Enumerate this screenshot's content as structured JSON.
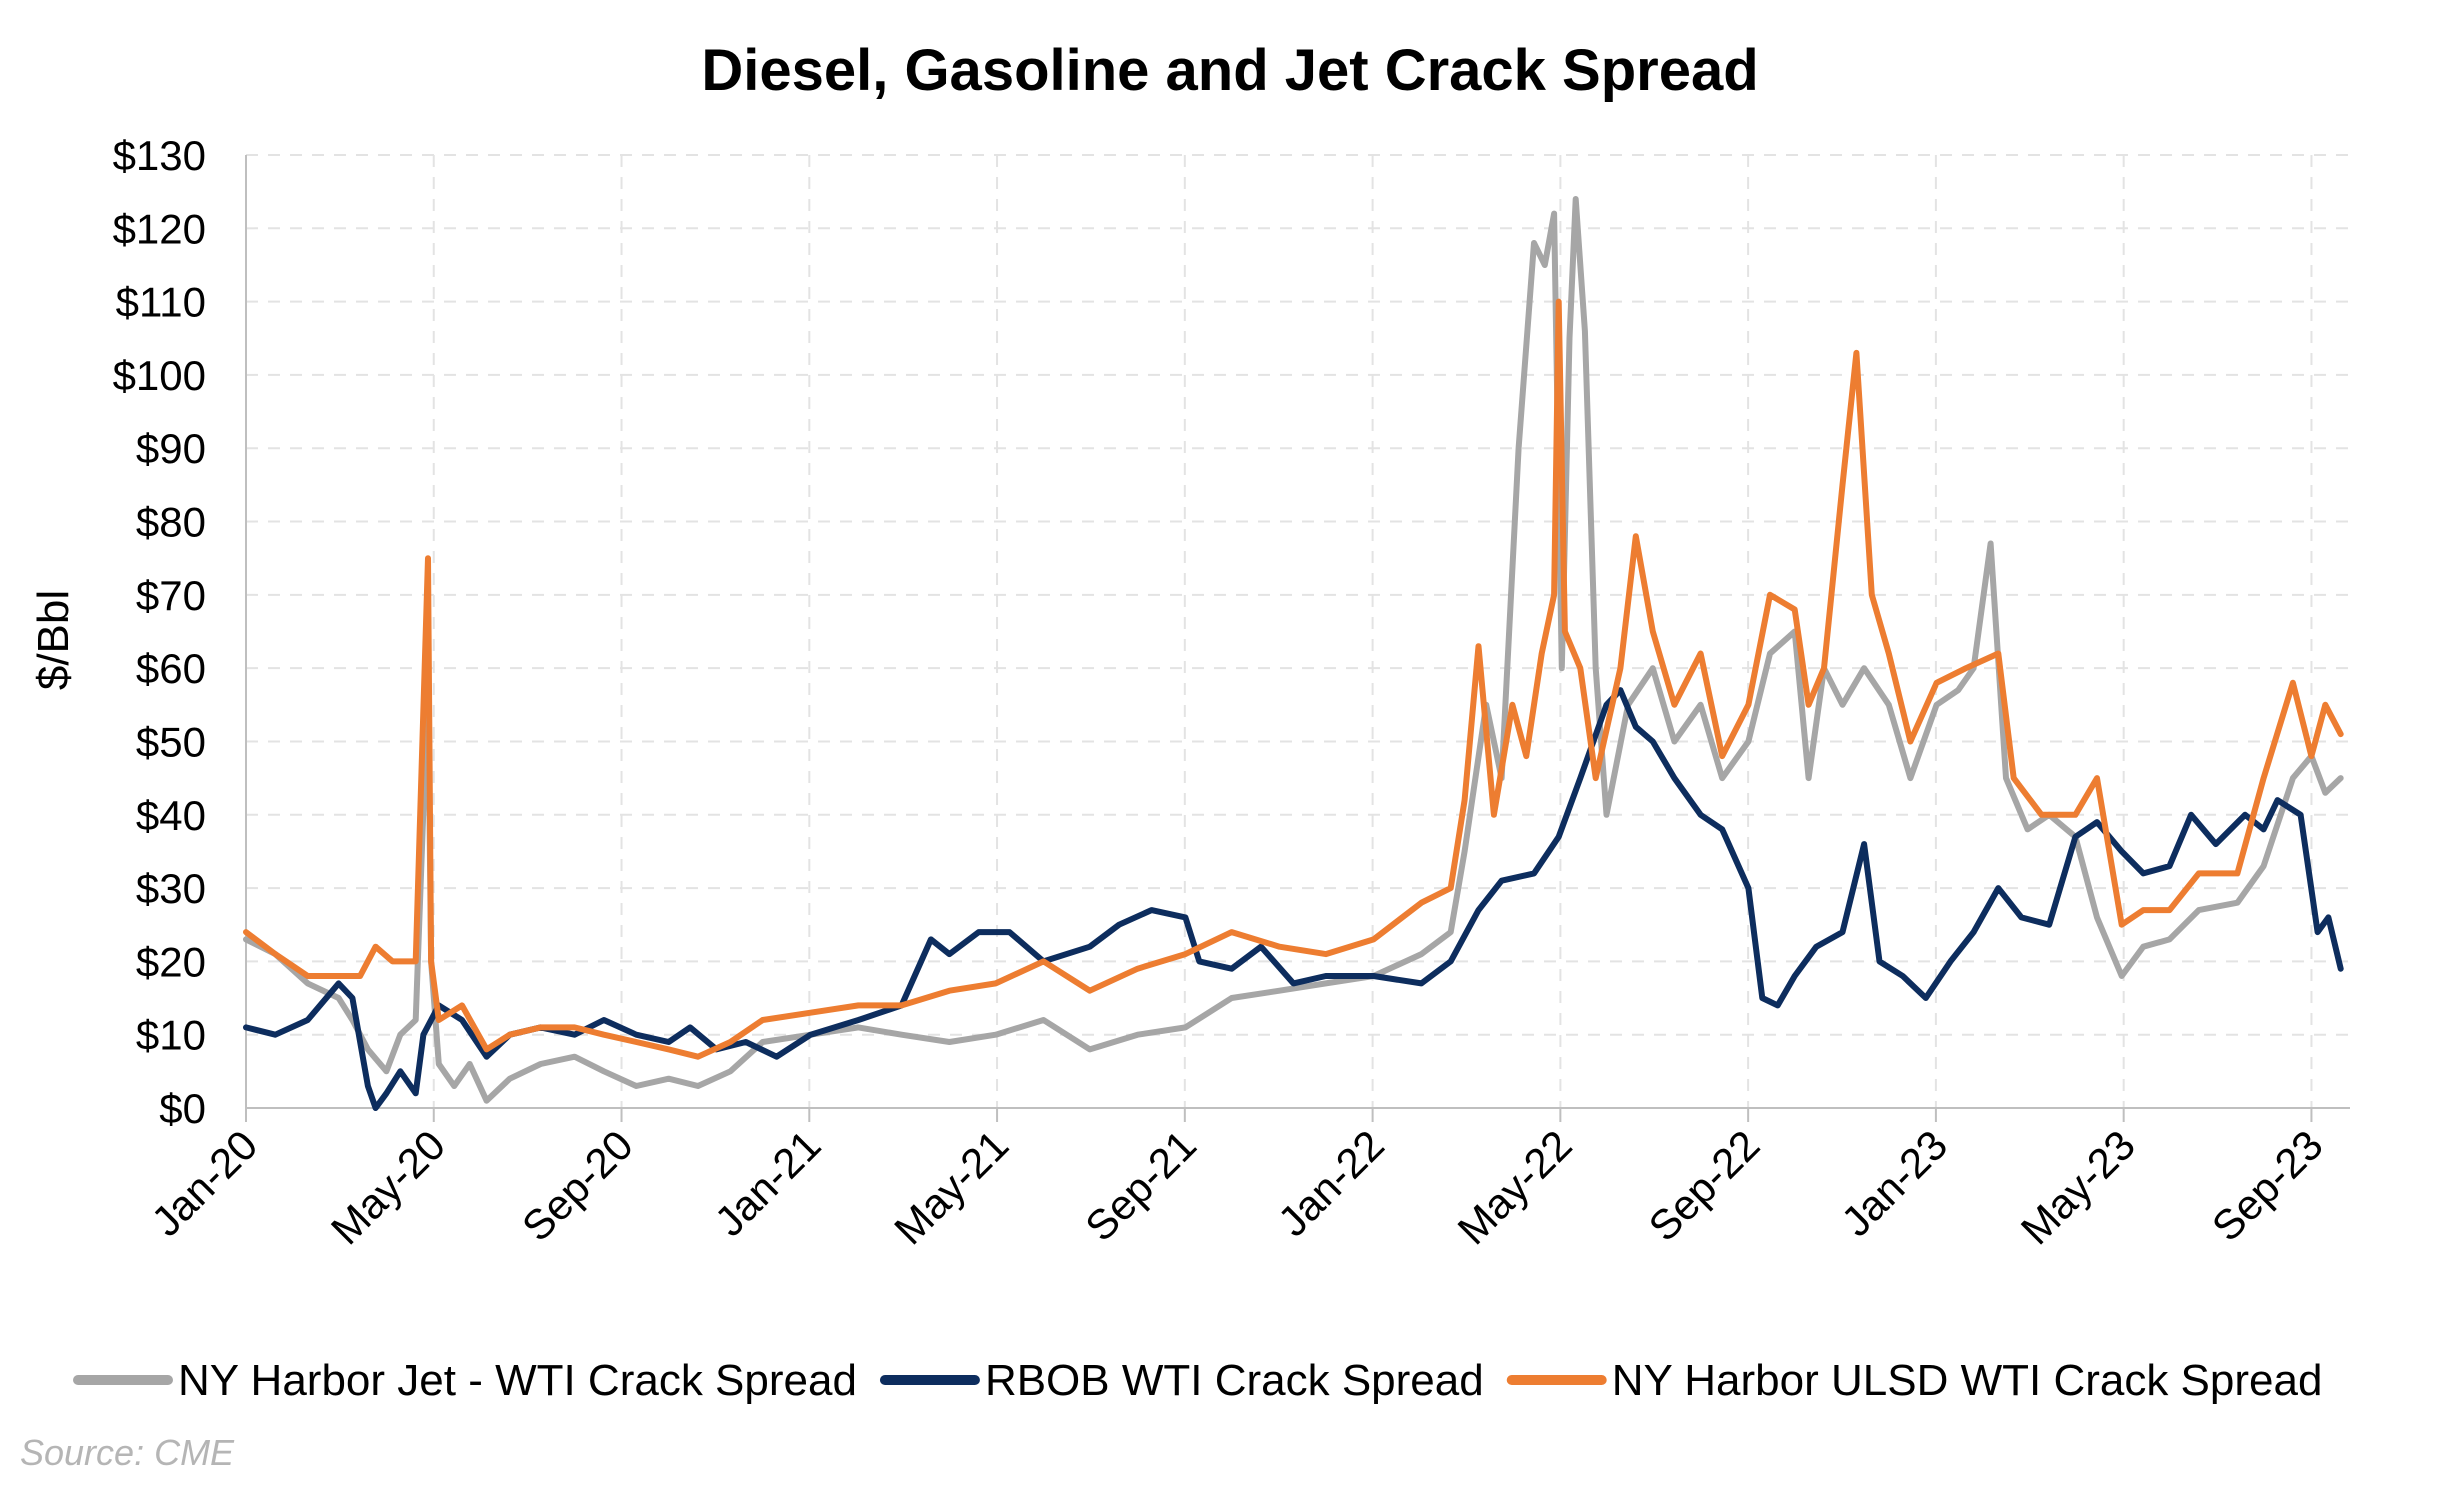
{
  "chart_data": {
    "type": "line",
    "title": "Diesel, Gasoline and Jet Crack Spread",
    "xlabel": "",
    "ylabel": "$/Bbl",
    "ylim": [
      0,
      130
    ],
    "yticks": [
      "$0",
      "$10",
      "$20",
      "$30",
      "$40",
      "$50",
      "$60",
      "$70",
      "$80",
      "$90",
      "$100",
      "$110",
      "$120",
      "$130"
    ],
    "xticks": [
      "Jan-20",
      "May-20",
      "Sep-20",
      "Jan-21",
      "May-21",
      "Sep-21",
      "Jan-22",
      "May-22",
      "Sep-22",
      "Jan-23",
      "May-23",
      "Sep-23"
    ],
    "grid": true,
    "legend_position": "bottom",
    "source": "Source: CME",
    "series": [
      {
        "name": "NY Harbor Jet - WTI Crack Spread",
        "color": "#a6a6a6",
        "points": [
          [
            "2020-01-01",
            23
          ],
          [
            "2020-01-20",
            21
          ],
          [
            "2020-02-10",
            17
          ],
          [
            "2020-03-01",
            15
          ],
          [
            "2020-03-10",
            12
          ],
          [
            "2020-03-20",
            8
          ],
          [
            "2020-04-01",
            5
          ],
          [
            "2020-04-10",
            10
          ],
          [
            "2020-04-20",
            12
          ],
          [
            "2020-04-28",
            58
          ],
          [
            "2020-04-30",
            20
          ],
          [
            "2020-05-05",
            6
          ],
          [
            "2020-05-15",
            3
          ],
          [
            "2020-05-25",
            6
          ],
          [
            "2020-06-05",
            1
          ],
          [
            "2020-06-20",
            4
          ],
          [
            "2020-07-10",
            6
          ],
          [
            "2020-08-01",
            7
          ],
          [
            "2020-08-20",
            5
          ],
          [
            "2020-09-10",
            3
          ],
          [
            "2020-10-01",
            4
          ],
          [
            "2020-10-20",
            3
          ],
          [
            "2020-11-10",
            5
          ],
          [
            "2020-12-01",
            9
          ],
          [
            "2021-01-01",
            10
          ],
          [
            "2021-02-01",
            11
          ],
          [
            "2021-03-01",
            10
          ],
          [
            "2021-04-01",
            9
          ],
          [
            "2021-05-01",
            10
          ],
          [
            "2021-06-01",
            12
          ],
          [
            "2021-07-01",
            8
          ],
          [
            "2021-08-01",
            10
          ],
          [
            "2021-09-01",
            11
          ],
          [
            "2021-10-01",
            15
          ],
          [
            "2021-11-01",
            16
          ],
          [
            "2021-12-01",
            17
          ],
          [
            "2022-01-01",
            18
          ],
          [
            "2022-02-01",
            21
          ],
          [
            "2022-02-20",
            24
          ],
          [
            "2022-03-01",
            35
          ],
          [
            "2022-03-15",
            55
          ],
          [
            "2022-03-25",
            45
          ],
          [
            "2022-04-05",
            90
          ],
          [
            "2022-04-15",
            118
          ],
          [
            "2022-04-22",
            115
          ],
          [
            "2022-04-28",
            122
          ],
          [
            "2022-05-03",
            60
          ],
          [
            "2022-05-08",
            105
          ],
          [
            "2022-05-12",
            124
          ],
          [
            "2022-05-18",
            106
          ],
          [
            "2022-05-25",
            60
          ],
          [
            "2022-06-01",
            40
          ],
          [
            "2022-06-15",
            55
          ],
          [
            "2022-07-01",
            60
          ],
          [
            "2022-07-15",
            50
          ],
          [
            "2022-08-01",
            55
          ],
          [
            "2022-08-15",
            45
          ],
          [
            "2022-09-01",
            50
          ],
          [
            "2022-09-15",
            62
          ],
          [
            "2022-10-01",
            65
          ],
          [
            "2022-10-10",
            45
          ],
          [
            "2022-10-20",
            60
          ],
          [
            "2022-11-01",
            55
          ],
          [
            "2022-11-15",
            60
          ],
          [
            "2022-12-01",
            55
          ],
          [
            "2022-12-15",
            45
          ],
          [
            "2023-01-01",
            55
          ],
          [
            "2023-01-15",
            57
          ],
          [
            "2023-01-25",
            60
          ],
          [
            "2023-02-05",
            77
          ],
          [
            "2023-02-15",
            45
          ],
          [
            "2023-03-01",
            38
          ],
          [
            "2023-03-15",
            40
          ],
          [
            "2023-04-01",
            37
          ],
          [
            "2023-04-15",
            26
          ],
          [
            "2023-05-01",
            18
          ],
          [
            "2023-05-15",
            22
          ],
          [
            "2023-06-01",
            23
          ],
          [
            "2023-06-20",
            27
          ],
          [
            "2023-07-15",
            28
          ],
          [
            "2023-08-01",
            33
          ],
          [
            "2023-08-20",
            45
          ],
          [
            "2023-09-01",
            48
          ],
          [
            "2023-09-10",
            43
          ],
          [
            "2023-09-20",
            45
          ]
        ]
      },
      {
        "name": "RBOB WTI Crack Spread",
        "color": "#0d2d5e",
        "points": [
          [
            "2020-01-01",
            11
          ],
          [
            "2020-01-20",
            10
          ],
          [
            "2020-02-10",
            12
          ],
          [
            "2020-03-01",
            17
          ],
          [
            "2020-03-10",
            15
          ],
          [
            "2020-03-20",
            3
          ],
          [
            "2020-03-25",
            0
          ],
          [
            "2020-04-01",
            2
          ],
          [
            "2020-04-10",
            5
          ],
          [
            "2020-04-20",
            2
          ],
          [
            "2020-04-25",
            10
          ],
          [
            "2020-05-05",
            14
          ],
          [
            "2020-05-20",
            12
          ],
          [
            "2020-06-05",
            7
          ],
          [
            "2020-06-20",
            10
          ],
          [
            "2020-07-10",
            11
          ],
          [
            "2020-08-01",
            10
          ],
          [
            "2020-08-20",
            12
          ],
          [
            "2020-09-10",
            10
          ],
          [
            "2020-10-01",
            9
          ],
          [
            "2020-10-15",
            11
          ],
          [
            "2020-11-01",
            8
          ],
          [
            "2020-11-20",
            9
          ],
          [
            "2020-12-10",
            7
          ],
          [
            "2021-01-01",
            10
          ],
          [
            "2021-02-01",
            12
          ],
          [
            "2021-03-01",
            14
          ],
          [
            "2021-03-20",
            23
          ],
          [
            "2021-04-01",
            21
          ],
          [
            "2021-04-20",
            24
          ],
          [
            "2021-05-10",
            24
          ],
          [
            "2021-06-01",
            20
          ],
          [
            "2021-07-01",
            22
          ],
          [
            "2021-07-20",
            25
          ],
          [
            "2021-08-10",
            27
          ],
          [
            "2021-09-01",
            26
          ],
          [
            "2021-09-10",
            20
          ],
          [
            "2021-10-01",
            19
          ],
          [
            "2021-10-20",
            22
          ],
          [
            "2021-11-10",
            17
          ],
          [
            "2021-12-01",
            18
          ],
          [
            "2022-01-01",
            18
          ],
          [
            "2022-02-01",
            17
          ],
          [
            "2022-02-20",
            20
          ],
          [
            "2022-03-10",
            27
          ],
          [
            "2022-03-25",
            31
          ],
          [
            "2022-04-15",
            32
          ],
          [
            "2022-05-01",
            37
          ],
          [
            "2022-05-15",
            45
          ],
          [
            "2022-06-01",
            55
          ],
          [
            "2022-06-10",
            57
          ],
          [
            "2022-06-20",
            52
          ],
          [
            "2022-07-01",
            50
          ],
          [
            "2022-07-15",
            45
          ],
          [
            "2022-08-01",
            40
          ],
          [
            "2022-08-15",
            38
          ],
          [
            "2022-09-01",
            30
          ],
          [
            "2022-09-10",
            15
          ],
          [
            "2022-09-20",
            14
          ],
          [
            "2022-10-01",
            18
          ],
          [
            "2022-10-15",
            22
          ],
          [
            "2022-11-01",
            24
          ],
          [
            "2022-11-15",
            36
          ],
          [
            "2022-11-25",
            20
          ],
          [
            "2022-12-10",
            18
          ],
          [
            "2022-12-25",
            15
          ],
          [
            "2023-01-10",
            20
          ],
          [
            "2023-01-25",
            24
          ],
          [
            "2023-02-10",
            30
          ],
          [
            "2023-02-25",
            26
          ],
          [
            "2023-03-15",
            25
          ],
          [
            "2023-04-01",
            37
          ],
          [
            "2023-04-15",
            39
          ],
          [
            "2023-05-01",
            35
          ],
          [
            "2023-05-15",
            32
          ],
          [
            "2023-06-01",
            33
          ],
          [
            "2023-06-15",
            40
          ],
          [
            "2023-07-01",
            36
          ],
          [
            "2023-07-20",
            40
          ],
          [
            "2023-08-01",
            38
          ],
          [
            "2023-08-10",
            42
          ],
          [
            "2023-08-25",
            40
          ],
          [
            "2023-09-05",
            24
          ],
          [
            "2023-09-12",
            26
          ],
          [
            "2023-09-20",
            19
          ]
        ]
      },
      {
        "name": "NY Harbor ULSD WTI Crack Spread",
        "color": "#ed7d31",
        "points": [
          [
            "2020-01-01",
            24
          ],
          [
            "2020-01-20",
            21
          ],
          [
            "2020-02-10",
            18
          ],
          [
            "2020-03-01",
            18
          ],
          [
            "2020-03-15",
            18
          ],
          [
            "2020-03-25",
            22
          ],
          [
            "2020-04-05",
            20
          ],
          [
            "2020-04-20",
            20
          ],
          [
            "2020-04-28",
            75
          ],
          [
            "2020-04-30",
            20
          ],
          [
            "2020-05-05",
            12
          ],
          [
            "2020-05-20",
            14
          ],
          [
            "2020-06-05",
            8
          ],
          [
            "2020-06-20",
            10
          ],
          [
            "2020-07-10",
            11
          ],
          [
            "2020-08-01",
            11
          ],
          [
            "2020-08-20",
            10
          ],
          [
            "2020-09-10",
            9
          ],
          [
            "2020-10-01",
            8
          ],
          [
            "2020-10-20",
            7
          ],
          [
            "2020-11-10",
            9
          ],
          [
            "2020-12-01",
            12
          ],
          [
            "2021-01-01",
            13
          ],
          [
            "2021-02-01",
            14
          ],
          [
            "2021-03-01",
            14
          ],
          [
            "2021-04-01",
            16
          ],
          [
            "2021-05-01",
            17
          ],
          [
            "2021-06-01",
            20
          ],
          [
            "2021-07-01",
            16
          ],
          [
            "2021-08-01",
            19
          ],
          [
            "2021-09-01",
            21
          ],
          [
            "2021-10-01",
            24
          ],
          [
            "2021-11-01",
            22
          ],
          [
            "2021-12-01",
            21
          ],
          [
            "2022-01-01",
            23
          ],
          [
            "2022-02-01",
            28
          ],
          [
            "2022-02-20",
            30
          ],
          [
            "2022-03-01",
            42
          ],
          [
            "2022-03-10",
            63
          ],
          [
            "2022-03-20",
            40
          ],
          [
            "2022-04-01",
            55
          ],
          [
            "2022-04-10",
            48
          ],
          [
            "2022-04-20",
            62
          ],
          [
            "2022-04-28",
            70
          ],
          [
            "2022-05-01",
            110
          ],
          [
            "2022-05-05",
            65
          ],
          [
            "2022-05-15",
            60
          ],
          [
            "2022-05-25",
            45
          ],
          [
            "2022-06-10",
            60
          ],
          [
            "2022-06-20",
            78
          ],
          [
            "2022-07-01",
            65
          ],
          [
            "2022-07-15",
            55
          ],
          [
            "2022-08-01",
            62
          ],
          [
            "2022-08-15",
            48
          ],
          [
            "2022-09-01",
            55
          ],
          [
            "2022-09-15",
            70
          ],
          [
            "2022-10-01",
            68
          ],
          [
            "2022-10-10",
            55
          ],
          [
            "2022-10-20",
            60
          ],
          [
            "2022-11-01",
            85
          ],
          [
            "2022-11-10",
            103
          ],
          [
            "2022-11-20",
            70
          ],
          [
            "2022-12-01",
            62
          ],
          [
            "2022-12-15",
            50
          ],
          [
            "2023-01-01",
            58
          ],
          [
            "2023-01-20",
            60
          ],
          [
            "2023-02-10",
            62
          ],
          [
            "2023-02-20",
            45
          ],
          [
            "2023-03-10",
            40
          ],
          [
            "2023-04-01",
            40
          ],
          [
            "2023-04-15",
            45
          ],
          [
            "2023-05-01",
            25
          ],
          [
            "2023-05-15",
            27
          ],
          [
            "2023-06-01",
            27
          ],
          [
            "2023-06-20",
            32
          ],
          [
            "2023-07-15",
            32
          ],
          [
            "2023-08-01",
            45
          ],
          [
            "2023-08-20",
            58
          ],
          [
            "2023-09-01",
            48
          ],
          [
            "2023-09-10",
            55
          ],
          [
            "2023-09-20",
            51
          ]
        ]
      }
    ]
  }
}
